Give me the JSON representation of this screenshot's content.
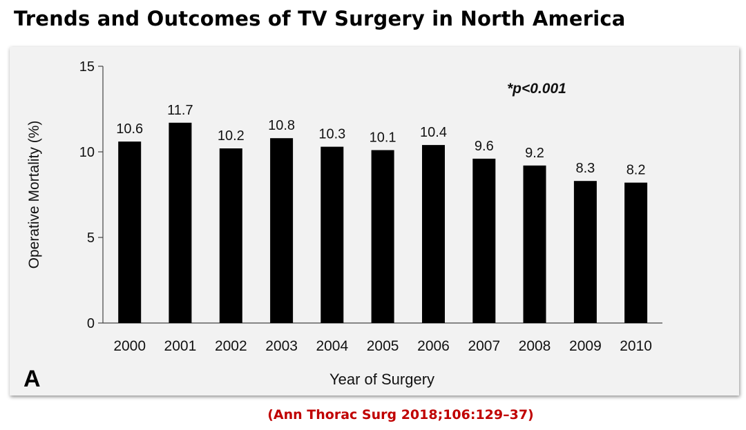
{
  "header": {
    "title": "Trends and Outcomes of TV Surgery in North America"
  },
  "footer": {
    "citation": "(Ann Thorac Surg 2018;106:129–37)"
  },
  "colors": {
    "title": "#000000",
    "citation": "#c00000",
    "bar": "#000000",
    "chart_background": "#f2f2f2"
  },
  "chart_data": {
    "type": "bar",
    "title": "",
    "panel_label": "A",
    "annotation": "*p<0.001",
    "xlabel": "Year of Surgery",
    "ylabel": "Operative Mortality (%)",
    "ylim": [
      0,
      15
    ],
    "yticks": [
      0,
      5,
      10,
      15
    ],
    "categories": [
      "2000",
      "2001",
      "2002",
      "2003",
      "2004",
      "2005",
      "2006",
      "2007",
      "2008",
      "2009",
      "2010"
    ],
    "values": [
      10.6,
      11.7,
      10.2,
      10.8,
      10.3,
      10.1,
      10.4,
      9.6,
      9.2,
      8.3,
      8.2
    ],
    "value_labels": [
      "10.6",
      "11.7",
      "10.2",
      "10.8",
      "10.3",
      "10.1",
      "10.4",
      "9.6",
      "9.2",
      "8.3",
      "8.2"
    ],
    "grid": false,
    "legend": "none"
  }
}
